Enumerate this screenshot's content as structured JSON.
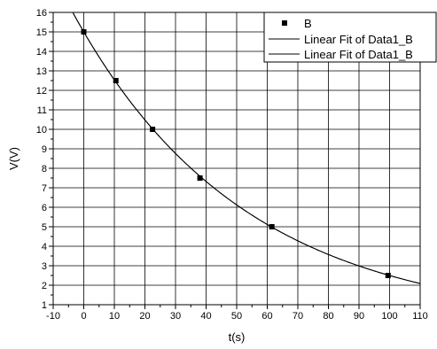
{
  "chart_data": {
    "type": "scatter",
    "xlabel": "t(s)",
    "ylabel": "V(V)",
    "xlim": [
      -10,
      110
    ],
    "ylim": [
      1,
      16
    ],
    "x_ticks": [
      -10,
      0,
      10,
      20,
      30,
      40,
      50,
      60,
      70,
      80,
      90,
      100,
      110
    ],
    "y_ticks": [
      1,
      2,
      3,
      4,
      5,
      6,
      7,
      8,
      9,
      10,
      11,
      12,
      13,
      14,
      15,
      16
    ],
    "grid": true,
    "legend_position": "top-right",
    "series": [
      {
        "name": "B",
        "kind": "points",
        "marker": "square",
        "color": "#000000",
        "x": [
          0,
          10.5,
          22.5,
          38,
          61.5,
          99.5
        ],
        "y": [
          15,
          12.5,
          10,
          7.5,
          5,
          2.5
        ]
      },
      {
        "name": "Linear Fit of Data1_B",
        "kind": "line",
        "color": "#000000",
        "function": "exponential",
        "amplitude": 15,
        "decay_constant_s": 55.8
      },
      {
        "name": "Linear Fit of Data1_B",
        "kind": "line",
        "color": "#000000",
        "function": "exponential",
        "amplitude": 15,
        "decay_constant_s": 55.8
      }
    ]
  }
}
